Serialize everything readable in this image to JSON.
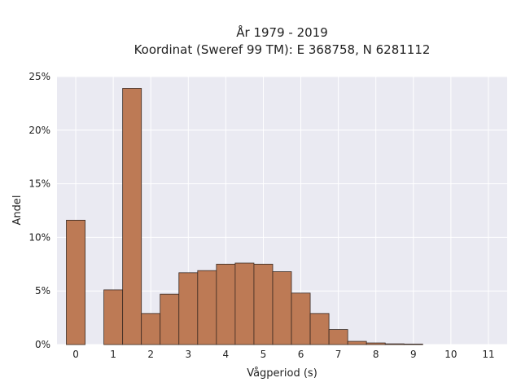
{
  "chart_data": {
    "type": "bar",
    "title_line1": "År 1979 - 2019",
    "title_line2": "Koordinat (Sweref 99 TM): E 368758, N 6281112",
    "xlabel": "Vågperiod (s)",
    "ylabel": "Andel",
    "bin_width": 0.5,
    "xlim": [
      -0.5,
      11.5
    ],
    "ylim": [
      0,
      25
    ],
    "grid": true,
    "x_ticks": [
      0,
      1,
      2,
      3,
      4,
      5,
      6,
      7,
      8,
      9,
      10,
      11
    ],
    "y_ticks": [
      0,
      5,
      10,
      15,
      20,
      25
    ],
    "y_tick_labels": [
      "0%",
      "5%",
      "10%",
      "15%",
      "20%",
      "25%"
    ],
    "bars": [
      {
        "x": 0.0,
        "value": 11.6
      },
      {
        "x": 1.0,
        "value": 5.1
      },
      {
        "x": 1.5,
        "value": 23.9
      },
      {
        "x": 2.0,
        "value": 2.9
      },
      {
        "x": 2.5,
        "value": 4.7
      },
      {
        "x": 3.0,
        "value": 6.7
      },
      {
        "x": 3.5,
        "value": 6.9
      },
      {
        "x": 4.0,
        "value": 7.5
      },
      {
        "x": 4.5,
        "value": 7.6
      },
      {
        "x": 5.0,
        "value": 7.5
      },
      {
        "x": 5.5,
        "value": 6.8
      },
      {
        "x": 6.0,
        "value": 4.8
      },
      {
        "x": 6.5,
        "value": 2.9
      },
      {
        "x": 7.0,
        "value": 1.4
      },
      {
        "x": 7.5,
        "value": 0.3
      },
      {
        "x": 8.0,
        "value": 0.15
      },
      {
        "x": 8.5,
        "value": 0.07
      },
      {
        "x": 9.0,
        "value": 0.05
      }
    ],
    "colors": {
      "bar_fill": "#bd7a55",
      "bar_edge": "#3a2a22",
      "plot_background": "#eaeaf2",
      "grid": "#ffffff"
    }
  }
}
